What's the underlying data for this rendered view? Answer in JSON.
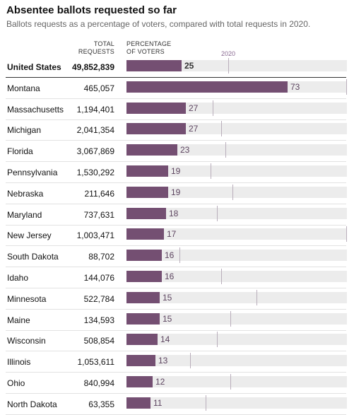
{
  "header": {
    "title": "Absentee ballots requested so far",
    "subtitle": "Ballots requests as a percentage of voters, compared with total requests in 2020.",
    "col_total": [
      "TOTAL",
      "REQUESTS"
    ],
    "col_pct": [
      "PERCENTAGE",
      "OF VOTERS"
    ],
    "marker_label": "2020"
  },
  "colors": {
    "bar": "#744f72",
    "track": "#ececec",
    "marker": "#b9aebb"
  },
  "chart_data": {
    "type": "bar",
    "orientation": "horizontal",
    "title": "Absentee ballots requested so far",
    "subtitle": "Ballots requests as a percentage of voters, compared with total requests in 2020.",
    "xlim": [
      0,
      100
    ],
    "categories": [
      "United States",
      "Montana",
      "Massachusetts",
      "Michigan",
      "Florida",
      "Pennsylvania",
      "Nebraska",
      "Maryland",
      "New Jersey",
      "South Dakota",
      "Idaho",
      "Minnesota",
      "Maine",
      "Wisconsin",
      "Illinois",
      "Ohio",
      "North Dakota"
    ],
    "rows": [
      {
        "state": "United States",
        "total": "49,852,839",
        "pct": 25,
        "pct_2020": 46
      },
      {
        "state": "Montana",
        "total": "465,057",
        "pct": 73,
        "pct_2020": 100
      },
      {
        "state": "Massachusetts",
        "total": "1,194,401",
        "pct": 27,
        "pct_2020": 39
      },
      {
        "state": "Michigan",
        "total": "2,041,354",
        "pct": 27,
        "pct_2020": 43
      },
      {
        "state": "Florida",
        "total": "3,067,869",
        "pct": 23,
        "pct_2020": 45
      },
      {
        "state": "Pennsylvania",
        "total": "1,530,292",
        "pct": 19,
        "pct_2020": 38
      },
      {
        "state": "Nebraska",
        "total": "211,646",
        "pct": 19,
        "pct_2020": 48
      },
      {
        "state": "Maryland",
        "total": "737,631",
        "pct": 18,
        "pct_2020": 41
      },
      {
        "state": "New Jersey",
        "total": "1,003,471",
        "pct": 17,
        "pct_2020": 100
      },
      {
        "state": "South Dakota",
        "total": "88,702",
        "pct": 16,
        "pct_2020": 24
      },
      {
        "state": "Idaho",
        "total": "144,076",
        "pct": 16,
        "pct_2020": 43
      },
      {
        "state": "Minnesota",
        "total": "522,784",
        "pct": 15,
        "pct_2020": 59
      },
      {
        "state": "Maine",
        "total": "134,593",
        "pct": 15,
        "pct_2020": 47
      },
      {
        "state": "Wisconsin",
        "total": "508,854",
        "pct": 14,
        "pct_2020": 41
      },
      {
        "state": "Illinois",
        "total": "1,053,611",
        "pct": 13,
        "pct_2020": 29
      },
      {
        "state": "Ohio",
        "total": "840,994",
        "pct": 12,
        "pct_2020": 47
      },
      {
        "state": "North Dakota",
        "total": "63,355",
        "pct": 11,
        "pct_2020": 36
      }
    ]
  }
}
